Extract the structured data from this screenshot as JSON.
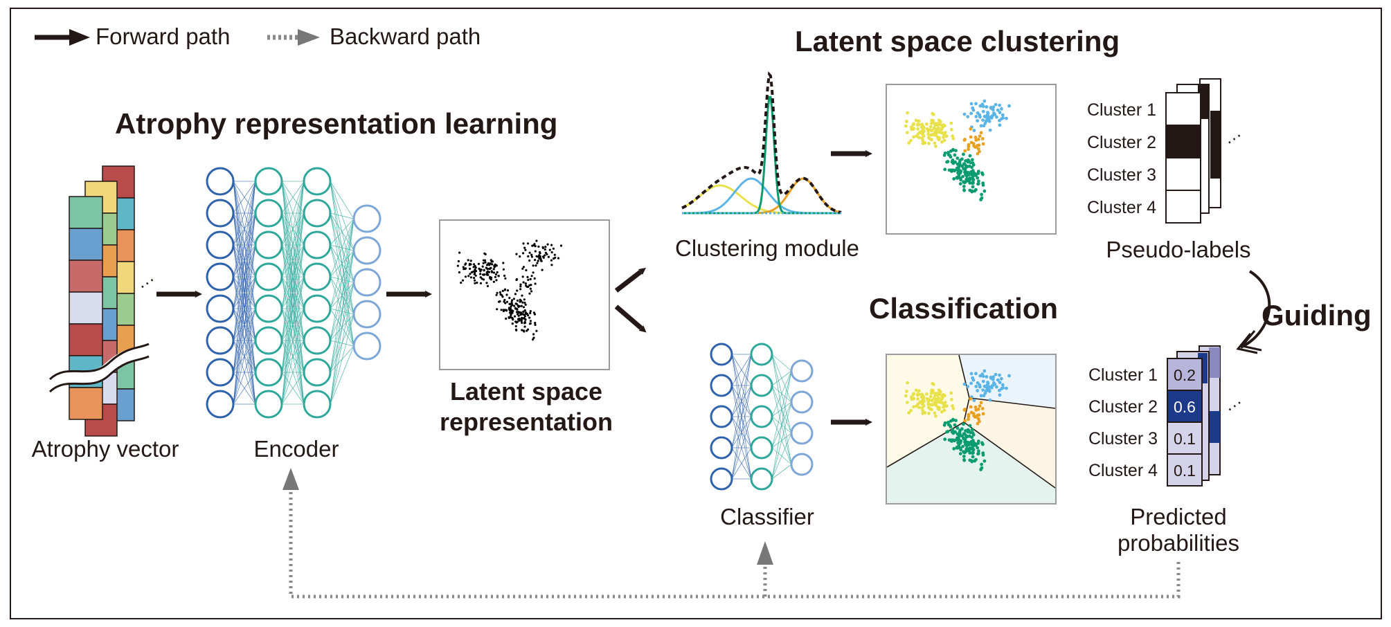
{
  "legend": {
    "forward": "Forward path",
    "backward": "Backward path"
  },
  "titles": {
    "representation": "Atrophy representation learning",
    "clustering": "Latent space clustering",
    "classification": "Classification",
    "guiding": "Guiding"
  },
  "labels": {
    "atrophy_vector": "Atrophy vector",
    "encoder": "Encoder",
    "latent_line1": "Latent space",
    "latent_line2": "representation",
    "clustering_module": "Clustering module",
    "classifier": "Classifier",
    "pseudo_labels": "Pseudo-labels",
    "predicted_line1": "Predicted",
    "predicted_line2": "probabilities"
  },
  "pseudo_clusters": [
    "Cluster 1",
    "Cluster 2",
    "Cluster 3",
    "Cluster 4"
  ],
  "predicted": [
    {
      "cluster": "Cluster 1",
      "value": "0.2",
      "p": 0.2
    },
    {
      "cluster": "Cluster 2",
      "value": "0.6",
      "p": 0.6
    },
    {
      "cluster": "Cluster 3",
      "value": "0.1",
      "p": 0.1
    },
    {
      "cluster": "Cluster 4",
      "value": "0.1",
      "p": 0.1
    }
  ],
  "ellipsis": "...",
  "colors": {
    "ink": "#231815",
    "cluster_yellow": "#e8e14a",
    "cluster_blue": "#5ab4e5",
    "cluster_orange": "#e8a020",
    "cluster_green": "#0a9b6e",
    "encoder_in": "#2f62ad",
    "encoder_mid": "#2ea89a",
    "encoder_out": "#7ea6d6",
    "prob_dark": "#1d3a8a",
    "prob_light": "#d4d3ea",
    "gray_arrow": "#777777"
  }
}
